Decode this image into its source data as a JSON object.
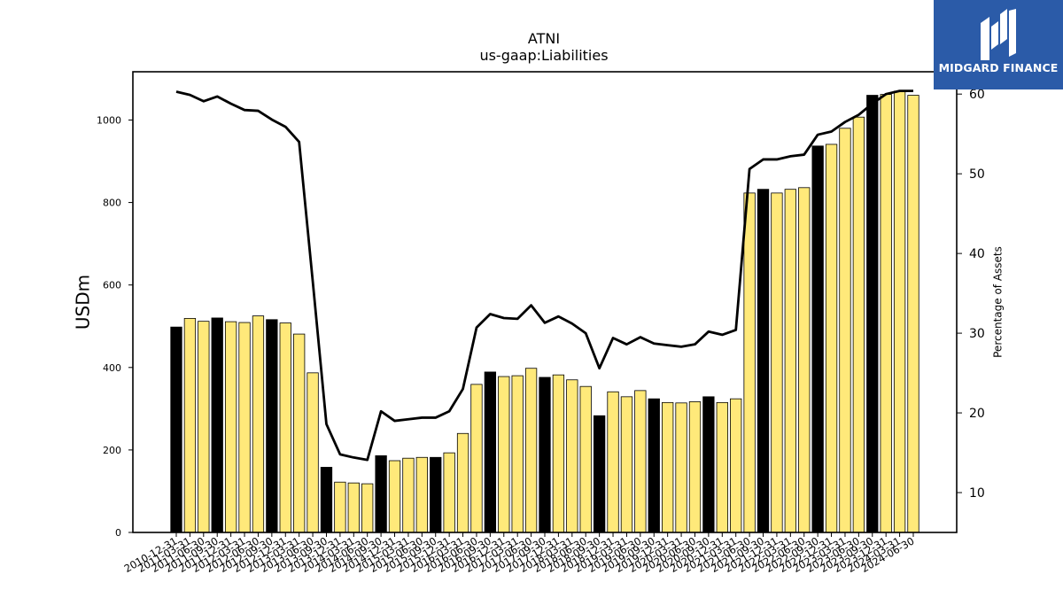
{
  "brand": {
    "name": "MIDGARD FINANCE",
    "box_color": "#2b5ba8"
  },
  "chart_data": {
    "type": "bar",
    "title": "ATNI",
    "subtitle": "us-gaap:Liabilities",
    "ylabel": "USDm",
    "y2label": "Percentage of Assets",
    "ylim": [
      0,
      1117
    ],
    "y2lim": [
      5,
      62.8
    ],
    "yticks": [
      0,
      200,
      400,
      600,
      800,
      1000
    ],
    "y2ticks": [
      10,
      20,
      30,
      40,
      50,
      60
    ],
    "colors": {
      "annual_bar": "#000000",
      "quarter_bar": "#ffe97a",
      "line": "#000000"
    },
    "categories": [
      "2010-12-31",
      "2011-03-31",
      "2011-06-30",
      "2011-09-30",
      "2011-12-31",
      "2012-03-31",
      "2012-06-30",
      "2012-09-30",
      "2012-12-31",
      "2013-03-31",
      "2013-06-30",
      "2013-09-30",
      "2013-12-31",
      "2014-03-31",
      "2014-06-30",
      "2014-09-30",
      "2014-12-31",
      "2015-03-31",
      "2015-06-30",
      "2015-09-30",
      "2015-12-31",
      "2016-03-31",
      "2016-06-30",
      "2016-09-30",
      "2016-12-31",
      "2017-03-31",
      "2017-06-30",
      "2017-09-30",
      "2017-12-31",
      "2018-03-31",
      "2018-06-30",
      "2018-09-30",
      "2018-12-31",
      "2019-03-31",
      "2019-06-30",
      "2019-09-30",
      "2019-12-31",
      "2020-03-31",
      "2020-06-30",
      "2020-09-30",
      "2020-12-31",
      "2021-03-31",
      "2021-06-30",
      "2021-09-30",
      "2021-12-31",
      "2022-03-31",
      "2022-06-30",
      "2022-09-30",
      "2022-12-31",
      "2023-03-31",
      "2023-06-30",
      "2023-09-30",
      "2023-12-31",
      "2024-03-31",
      "2024-06-30"
    ],
    "tick_labels": [
      "2010-12-31",
      "2011-03-31",
      "2011-06-30",
      "2011-09-30",
      "2011-12-31",
      "2012-03-31",
      "2012-06-30",
      "2012-09-30",
      "2012-12-31",
      "2013-03-31",
      "2013-06-30",
      "2013-09-30",
      "2013-12-31",
      "2014-03-31",
      "2014-06-30",
      "2014-09-30",
      "2014-12-31",
      "2015-03-31",
      "2015-06-30",
      "2015-09-30",
      "2015-12-31",
      "2016-03-31",
      "2016-06-30",
      "2016-09-30",
      "2016-12-31",
      "2017-03-31",
      "2017-06-30",
      "2017-09-30",
      "2017-12-31",
      "2018-03-31",
      "2018-06-30",
      "2018-09-30",
      "2018-12-31",
      "2019-03-31",
      "2019-06-30",
      "2019-09-30",
      "2019-12-31",
      "2020-03-31",
      "2020-06-30",
      "2020-09-30",
      "2020-12-31",
      "2021-03-31",
      "2021-06-30",
      "2021-09-30",
      "2021-12-31",
      "2022-03-31",
      "2022-06-30",
      "2022-09-30",
      "2022-12-31",
      "2023-03-31",
      "2023-06-30",
      "2023-09-30",
      "2023-12-31",
      "2024-03-31",
      "2024-06-30"
    ],
    "annual": [
      true,
      false,
      false,
      true,
      false,
      false,
      false,
      true,
      false,
      false,
      false,
      true,
      false,
      false,
      false,
      true,
      false,
      false,
      false,
      true,
      false,
      false,
      false,
      true,
      false,
      false,
      false,
      true,
      false,
      false,
      false,
      true,
      false,
      false,
      false,
      true,
      false,
      false,
      false,
      true,
      false,
      false,
      false,
      true,
      false,
      false,
      false,
      true,
      false,
      false,
      false,
      true,
      false,
      false,
      false
    ],
    "series": [
      {
        "type": "bar",
        "values": [
          498,
          519,
          512,
          520,
          511,
          509,
          525,
          516,
          508,
          481,
          387,
          158,
          122,
          120,
          118,
          186,
          174,
          180,
          182,
          182,
          193,
          240,
          359,
          389,
          378,
          380,
          398,
          376,
          382,
          370,
          354,
          283,
          341,
          329,
          344,
          324,
          315,
          314,
          317,
          329,
          315,
          324,
          823,
          832,
          823,
          832,
          836,
          937,
          941,
          980,
          1007,
          1060,
          1062,
          1070,
          1060
        ]
      },
      {
        "type": "line",
        "axis": "right",
        "values": [
          60.3,
          59.9,
          59.1,
          59.7,
          58.8,
          58.0,
          57.9,
          56.8,
          55.9,
          54.0,
          36.5,
          18.6,
          14.8,
          14.4,
          14.1,
          20.2,
          19.0,
          19.2,
          19.4,
          19.4,
          20.2,
          23.0,
          30.7,
          32.4,
          31.9,
          31.8,
          33.5,
          31.3,
          32.1,
          31.2,
          30.0,
          25.6,
          29.4,
          28.6,
          29.5,
          28.7,
          28.5,
          28.3,
          28.6,
          30.2,
          29.8,
          30.4,
          50.6,
          51.8,
          51.8,
          52.2,
          52.4,
          54.9,
          55.3,
          56.5,
          57.4,
          58.8,
          60.0,
          60.4,
          60.4
        ]
      }
    ]
  }
}
